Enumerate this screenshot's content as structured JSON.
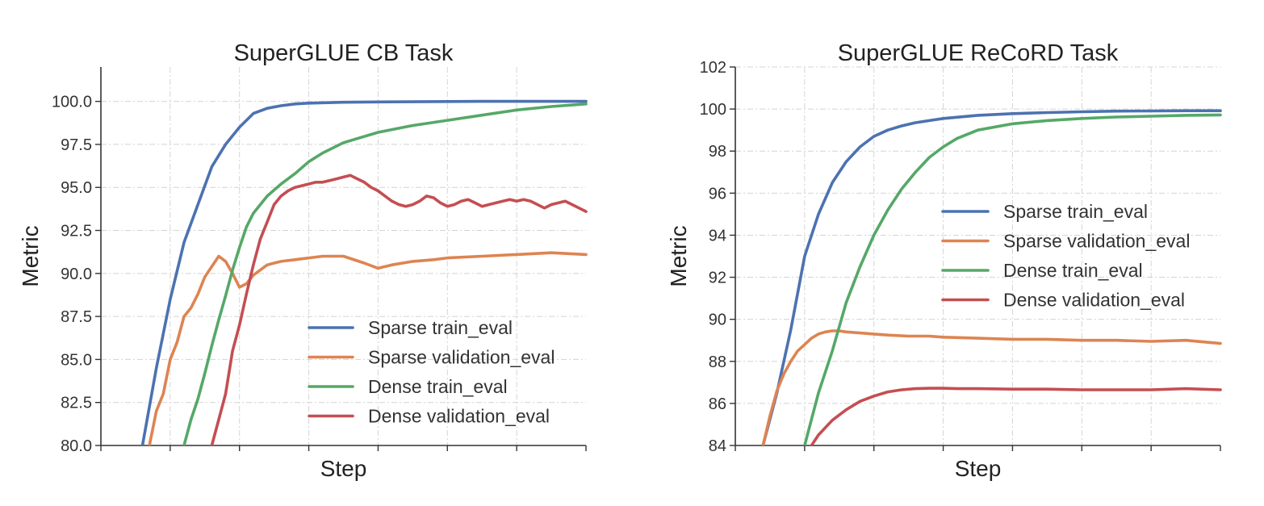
{
  "chart_data": [
    {
      "type": "line",
      "title": "SuperGLUE CB Task",
      "xlabel": "Step",
      "ylabel": "Metric",
      "xlim": [
        0,
        70
      ],
      "ylim": [
        80,
        102
      ],
      "yticks": [
        80,
        82.5,
        85,
        87.5,
        90,
        92.5,
        95,
        97.5,
        100
      ],
      "ytick_labels": [
        "80.0",
        "82.5",
        "85.0",
        "87.5",
        "90.0",
        "92.5",
        "95.0",
        "97.5",
        "100.0"
      ],
      "xticks": [
        10,
        20,
        30,
        40,
        50,
        60
      ],
      "grid": true,
      "legend_position": "lower-right",
      "series": [
        {
          "name": "Sparse train_eval",
          "color": "#4c72b0",
          "x": [
            6,
            8,
            10,
            12,
            14,
            16,
            18,
            20,
            22,
            24,
            26,
            28,
            30,
            35,
            40,
            45,
            50,
            55,
            60,
            65,
            70
          ],
          "y": [
            80.0,
            84.5,
            88.5,
            91.8,
            94.0,
            96.2,
            97.5,
            98.5,
            99.3,
            99.6,
            99.75,
            99.85,
            99.9,
            99.95,
            99.97,
            99.98,
            99.99,
            100.0,
            100.0,
            100.0,
            100.0
          ]
        },
        {
          "name": "Sparse validation_eval",
          "color": "#dd8452",
          "x": [
            7,
            8,
            9,
            10,
            11,
            12,
            13,
            14,
            15,
            16,
            17,
            18,
            19,
            20,
            21,
            22,
            23,
            24,
            25,
            26,
            28,
            30,
            32,
            35,
            38,
            40,
            42,
            45,
            48,
            50,
            55,
            60,
            65,
            70
          ],
          "y": [
            80.0,
            82.0,
            83.0,
            85.0,
            86.0,
            87.5,
            88.0,
            88.8,
            89.8,
            90.4,
            91.0,
            90.7,
            90.0,
            89.2,
            89.4,
            89.9,
            90.2,
            90.5,
            90.6,
            90.7,
            90.8,
            90.9,
            91.0,
            91.0,
            90.6,
            90.3,
            90.5,
            90.7,
            90.8,
            90.9,
            91.0,
            91.1,
            91.2,
            91.1
          ]
        },
        {
          "name": "Dense train_eval",
          "color": "#55a868",
          "x": [
            12,
            13,
            14,
            15,
            16,
            17,
            18,
            19,
            20,
            21,
            22,
            24,
            26,
            28,
            30,
            32,
            35,
            40,
            45,
            50,
            55,
            60,
            65,
            70
          ],
          "y": [
            80.0,
            81.5,
            82.7,
            84.2,
            85.8,
            87.3,
            88.7,
            90.2,
            91.5,
            92.7,
            93.5,
            94.5,
            95.2,
            95.8,
            96.5,
            97.0,
            97.6,
            98.2,
            98.6,
            98.9,
            99.2,
            99.5,
            99.7,
            99.85
          ]
        },
        {
          "name": "Dense validation_eval",
          "color": "#c44e52",
          "x": [
            16,
            17,
            18,
            19,
            20,
            21,
            22,
            23,
            24,
            25,
            26,
            27,
            28,
            29,
            30,
            31,
            32,
            33,
            34,
            35,
            36,
            37,
            38,
            39,
            40,
            41,
            42,
            43,
            44,
            45,
            46,
            47,
            48,
            49,
            50,
            51,
            52,
            53,
            54,
            55,
            56,
            57,
            58,
            59,
            60,
            61,
            62,
            63,
            64,
            65,
            66,
            67,
            68,
            69,
            70
          ],
          "y": [
            80.0,
            81.5,
            83.0,
            85.5,
            87.0,
            88.8,
            90.5,
            92.0,
            93.0,
            94.0,
            94.5,
            94.8,
            95.0,
            95.1,
            95.2,
            95.3,
            95.3,
            95.4,
            95.5,
            95.6,
            95.7,
            95.5,
            95.3,
            95.0,
            94.8,
            94.5,
            94.2,
            94.0,
            93.9,
            94.0,
            94.2,
            94.5,
            94.4,
            94.1,
            93.9,
            94.0,
            94.2,
            94.3,
            94.1,
            93.9,
            94.0,
            94.1,
            94.2,
            94.3,
            94.2,
            94.3,
            94.2,
            94.0,
            93.8,
            94.0,
            94.1,
            94.2,
            94.0,
            93.8,
            93.6
          ]
        }
      ]
    },
    {
      "type": "line",
      "title": "SuperGLUE ReCoRD Task",
      "xlabel": "Step",
      "ylabel": "Metric",
      "xlim": [
        0,
        70
      ],
      "ylim": [
        84,
        102
      ],
      "yticks": [
        84,
        86,
        88,
        90,
        92,
        94,
        96,
        98,
        100,
        102
      ],
      "ytick_labels": [
        "84",
        "86",
        "88",
        "90",
        "92",
        "94",
        "96",
        "98",
        "100",
        "102"
      ],
      "xticks": [
        10,
        20,
        30,
        40,
        50,
        60
      ],
      "grid": true,
      "legend_position": "upper-right",
      "series": [
        {
          "name": "Sparse train_eval",
          "color": "#4c72b0",
          "x": [
            4,
            6,
            8,
            10,
            12,
            14,
            16,
            18,
            20,
            22,
            24,
            26,
            28,
            30,
            35,
            40,
            45,
            50,
            55,
            60,
            65,
            70
          ],
          "y": [
            84.0,
            86.5,
            89.5,
            93.0,
            95.0,
            96.5,
            97.5,
            98.2,
            98.7,
            99.0,
            99.2,
            99.35,
            99.45,
            99.55,
            99.7,
            99.78,
            99.83,
            99.87,
            99.9,
            99.91,
            99.92,
            99.92
          ]
        },
        {
          "name": "Sparse validation_eval",
          "color": "#dd8452",
          "x": [
            4,
            5,
            6,
            7,
            8,
            9,
            10,
            11,
            12,
            13,
            14,
            15,
            16,
            18,
            20,
            22,
            25,
            28,
            30,
            35,
            40,
            45,
            50,
            55,
            60,
            65,
            70
          ],
          "y": [
            84.0,
            85.4,
            86.6,
            87.4,
            88.0,
            88.5,
            88.8,
            89.1,
            89.3,
            89.4,
            89.45,
            89.45,
            89.4,
            89.35,
            89.3,
            89.25,
            89.2,
            89.2,
            89.15,
            89.1,
            89.05,
            89.05,
            89.0,
            89.0,
            88.95,
            89.0,
            88.85
          ]
        },
        {
          "name": "Dense train_eval",
          "color": "#55a868",
          "x": [
            10,
            12,
            14,
            16,
            18,
            20,
            22,
            24,
            26,
            28,
            30,
            32,
            35,
            40,
            45,
            50,
            55,
            60,
            65,
            70
          ],
          "y": [
            84.0,
            86.5,
            88.5,
            90.8,
            92.5,
            94.0,
            95.2,
            96.2,
            97.0,
            97.7,
            98.2,
            98.6,
            99.0,
            99.3,
            99.45,
            99.55,
            99.62,
            99.66,
            99.7,
            99.72
          ]
        },
        {
          "name": "Dense validation_eval",
          "color": "#c44e52",
          "x": [
            11,
            12,
            14,
            16,
            18,
            20,
            22,
            24,
            26,
            28,
            30,
            32,
            35,
            40,
            45,
            50,
            55,
            60,
            65,
            70
          ],
          "y": [
            84.0,
            84.5,
            85.2,
            85.7,
            86.1,
            86.35,
            86.55,
            86.65,
            86.7,
            86.72,
            86.72,
            86.7,
            86.7,
            86.68,
            86.68,
            86.65,
            86.65,
            86.65,
            86.7,
            86.65
          ]
        }
      ]
    }
  ]
}
